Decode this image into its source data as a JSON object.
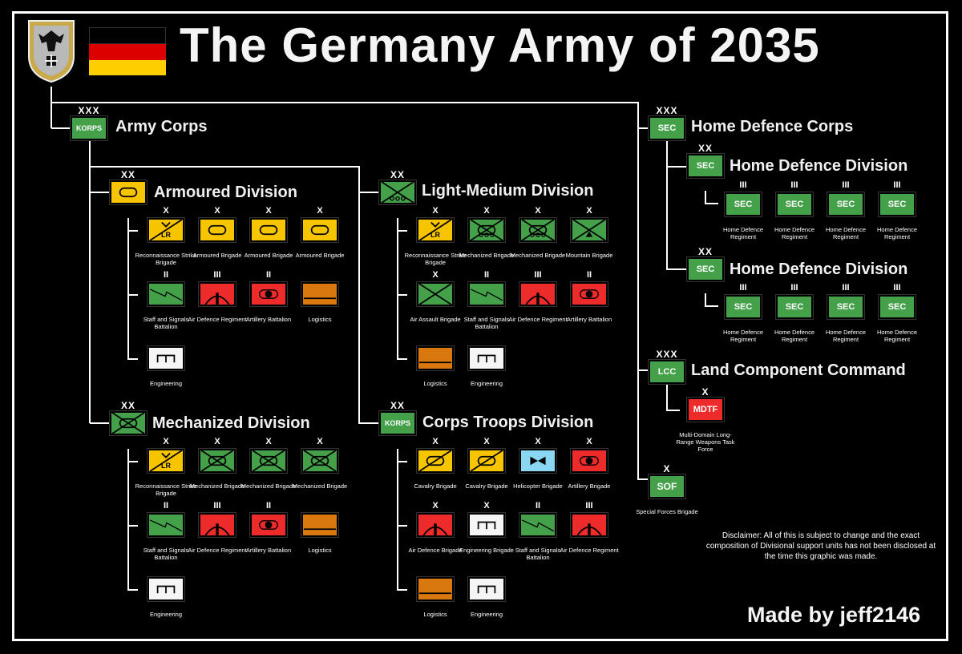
{
  "title": "The Germany Army of 2035",
  "credit": "Made by jeff2146",
  "disclaimer": "Disclaimer: All of this is subject to change and the exact composition of Divisional support units has not been disclosed at the time this graphic was made.",
  "colors": {
    "armour": "#f7c400",
    "infantry": "#44a149",
    "fires": "#ee2b2b",
    "logistics": "#d9780e",
    "engineer": "#f5f5f5",
    "aviation": "#89d7f2",
    "flag_black": "#000000",
    "flag_red": "#dd0000",
    "flag_gold": "#ffce00"
  },
  "formations": {
    "army_corps": {
      "label": "Army Corps",
      "echelon": "XXX",
      "symbol_text": "KORPS"
    },
    "armoured_div": {
      "label": "Armoured Division",
      "echelon": "XX"
    },
    "light_medium_div": {
      "label": "Light-Medium Division",
      "echelon": "XX"
    },
    "mechanized_div": {
      "label": "Mechanized Division",
      "echelon": "XX"
    },
    "corps_troops_div": {
      "label": "Corps Troops Division",
      "echelon": "XX",
      "symbol_text": "KORPS"
    },
    "home_defence_corps": {
      "label": "Home Defence Corps",
      "echelon": "XXX",
      "symbol_text": "SEC"
    },
    "hd_div1": {
      "label": "Home Defence Division",
      "echelon": "XX",
      "symbol_text": "SEC"
    },
    "hd_div2": {
      "label": "Home Defence Division",
      "echelon": "XX",
      "symbol_text": "SEC"
    },
    "lcc": {
      "label": "Land Component Command",
      "echelon": "XXX",
      "symbol_text": "LCC"
    },
    "mdtf": {
      "caption": "Multi-Domain Long-Range Weapons Task Force",
      "echelon": "X",
      "symbol_text": "MDTF"
    },
    "sof": {
      "caption": "Special Forces Brigade",
      "echelon": "X",
      "symbol_text": "SOF"
    }
  },
  "units": [
    {
      "id": "a1",
      "echelon": "X",
      "caption": "Reconnaissance Strike Brigade",
      "kind": "recon",
      "text": "LR"
    },
    {
      "id": "a2",
      "echelon": "X",
      "caption": "Armoured Brigade",
      "kind": "armour"
    },
    {
      "id": "a3",
      "echelon": "X",
      "caption": "Armoured Brigade",
      "kind": "armour"
    },
    {
      "id": "a4",
      "echelon": "X",
      "caption": "Armoured Brigade",
      "kind": "armour"
    },
    {
      "id": "a5",
      "echelon": "II",
      "caption": "Staff and Signals Battalion",
      "kind": "signals"
    },
    {
      "id": "a6",
      "echelon": "III",
      "caption": "Air Defence Regiment",
      "kind": "airdef"
    },
    {
      "id": "a7",
      "echelon": "II",
      "caption": "Artillery Battalion",
      "kind": "artillery"
    },
    {
      "id": "a8",
      "echelon": "",
      "caption": "Logistics",
      "kind": "logistics"
    },
    {
      "id": "a9",
      "echelon": "",
      "caption": "Engineering",
      "kind": "engineer"
    },
    {
      "id": "l1",
      "echelon": "X",
      "caption": "Reconnaissance Strike Brigade",
      "kind": "recon",
      "text": "LR"
    },
    {
      "id": "l2",
      "echelon": "X",
      "caption": "Mechanized Brigade",
      "kind": "mech"
    },
    {
      "id": "l3",
      "echelon": "X",
      "caption": "Mechanized Brigade",
      "kind": "mech"
    },
    {
      "id": "l4",
      "echelon": "X",
      "caption": "Mountain Brigade",
      "kind": "mountain"
    },
    {
      "id": "l5",
      "echelon": "X",
      "caption": "Air Assault Brigade",
      "kind": "infantry"
    },
    {
      "id": "l6",
      "echelon": "II",
      "caption": "Staff and Signals Battalion",
      "kind": "signals"
    },
    {
      "id": "l7",
      "echelon": "III",
      "caption": "Air Defence Regiment",
      "kind": "airdef"
    },
    {
      "id": "l8",
      "echelon": "II",
      "caption": "Artillery Battalion",
      "kind": "artillery"
    },
    {
      "id": "l9",
      "echelon": "",
      "caption": "Logistics",
      "kind": "logistics"
    },
    {
      "id": "l10",
      "echelon": "",
      "caption": "Engineering",
      "kind": "engineer"
    },
    {
      "id": "m1",
      "echelon": "X",
      "caption": "Reconnaissance Strike Brigade",
      "kind": "recon",
      "text": "LR"
    },
    {
      "id": "m2",
      "echelon": "X",
      "caption": "Mechanized Brigade",
      "kind": "mech2"
    },
    {
      "id": "m3",
      "echelon": "X",
      "caption": "Mechanized Brigade",
      "kind": "mech2"
    },
    {
      "id": "m4",
      "echelon": "X",
      "caption": "Mechanized Brigade",
      "kind": "mech2"
    },
    {
      "id": "m5",
      "echelon": "II",
      "caption": "Staff and Signals Battalion",
      "kind": "signals"
    },
    {
      "id": "m6",
      "echelon": "III",
      "caption": "Air Defence Regiment",
      "kind": "airdef"
    },
    {
      "id": "m7",
      "echelon": "II",
      "caption": "Artillery Battalion",
      "kind": "artillery"
    },
    {
      "id": "m8",
      "echelon": "",
      "caption": "Logistics",
      "kind": "logistics"
    },
    {
      "id": "m9",
      "echelon": "",
      "caption": "Engineering",
      "kind": "engineer"
    },
    {
      "id": "c1",
      "echelon": "X",
      "caption": "Cavalry Brigade",
      "kind": "cavalry"
    },
    {
      "id": "c2",
      "echelon": "X",
      "caption": "Cavalry Brigade",
      "kind": "cavalry"
    },
    {
      "id": "c3",
      "echelon": "X",
      "caption": "Helicopter Brigade",
      "kind": "helicopter"
    },
    {
      "id": "c4",
      "echelon": "X",
      "caption": "Artillery Brigade",
      "kind": "artillery"
    },
    {
      "id": "c5",
      "echelon": "X",
      "caption": "Air Defence Brigade",
      "kind": "airdef"
    },
    {
      "id": "c6",
      "echelon": "X",
      "caption": "Engineering Brigade",
      "kind": "engineer"
    },
    {
      "id": "c7",
      "echelon": "II",
      "caption": "Staff and Signals Battalion",
      "kind": "signals"
    },
    {
      "id": "c8",
      "echelon": "III",
      "caption": "Air Defence Regiment",
      "kind": "airdef"
    },
    {
      "id": "c9",
      "echelon": "",
      "caption": "Logistics",
      "kind": "logistics"
    },
    {
      "id": "c10",
      "echelon": "",
      "caption": "Engineering",
      "kind": "engineer"
    },
    {
      "id": "h1",
      "echelon": "III",
      "caption": "Home Defence Regiment",
      "kind": "sec",
      "text": "SEC"
    },
    {
      "id": "h2",
      "echelon": "III",
      "caption": "Home Defence Regiment",
      "kind": "sec",
      "text": "SEC"
    },
    {
      "id": "h3",
      "echelon": "III",
      "caption": "Home Defence Regiment",
      "kind": "sec",
      "text": "SEC"
    },
    {
      "id": "h4",
      "echelon": "III",
      "caption": "Home Defence Regiment",
      "kind": "sec",
      "text": "SEC"
    },
    {
      "id": "h5",
      "echelon": "III",
      "caption": "Home Defence Regiment",
      "kind": "sec",
      "text": "SEC"
    },
    {
      "id": "h6",
      "echelon": "III",
      "caption": "Home Defence Regiment",
      "kind": "sec",
      "text": "SEC"
    },
    {
      "id": "h7",
      "echelon": "III",
      "caption": "Home Defence Regiment",
      "kind": "sec",
      "text": "SEC"
    },
    {
      "id": "h8",
      "echelon": "III",
      "caption": "Home Defence Regiment",
      "kind": "sec",
      "text": "SEC"
    }
  ]
}
